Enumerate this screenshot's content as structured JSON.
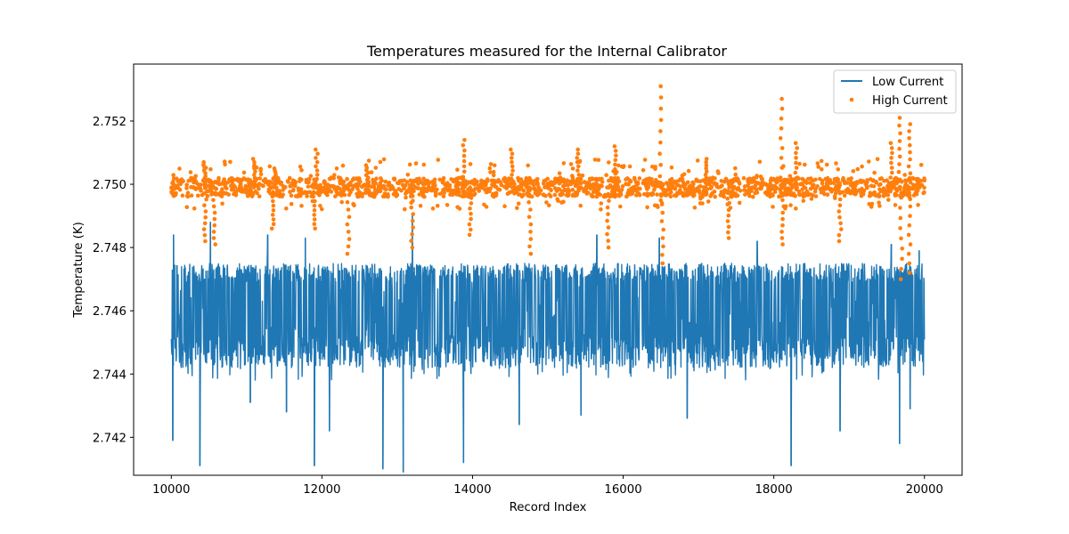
{
  "chart_data": {
    "type": "line",
    "title": "Temperatures measured for the Internal Calibrator",
    "xlabel": "Record Index",
    "ylabel": "Temperature (K)",
    "xlim": [
      9500,
      20500
    ],
    "ylim": [
      2.7408,
      2.7538
    ],
    "xticks": [
      10000,
      12000,
      14000,
      16000,
      18000,
      20000
    ],
    "yticks": [
      2.742,
      2.744,
      2.746,
      2.748,
      2.75,
      2.752
    ],
    "ytick_labels": [
      "2.742",
      "2.744",
      "2.746",
      "2.748",
      "2.750",
      "2.752"
    ],
    "grid": false,
    "legend_position": "top-right",
    "series": [
      {
        "name": "Low Current",
        "kind": "line",
        "color": "#1f77b4",
        "x_range": [
          10000,
          20000
        ],
        "mean": 2.7458,
        "band": [
          2.7438,
          2.7475
        ],
        "low_dips": [
          {
            "x": 10020,
            "y": 2.7419
          },
          {
            "x": 10380,
            "y": 2.7411
          },
          {
            "x": 11050,
            "y": 2.7431
          },
          {
            "x": 11530,
            "y": 2.7428
          },
          {
            "x": 11900,
            "y": 2.7411
          },
          {
            "x": 12100,
            "y": 2.7422
          },
          {
            "x": 12810,
            "y": 2.741
          },
          {
            "x": 13080,
            "y": 2.7409
          },
          {
            "x": 13880,
            "y": 2.7412
          },
          {
            "x": 14620,
            "y": 2.7424
          },
          {
            "x": 15440,
            "y": 2.7427
          },
          {
            "x": 16850,
            "y": 2.7426
          },
          {
            "x": 18230,
            "y": 2.7411
          },
          {
            "x": 18880,
            "y": 2.7422
          },
          {
            "x": 19670,
            "y": 2.7418
          },
          {
            "x": 19810,
            "y": 2.7429
          }
        ],
        "high_spikes": [
          {
            "x": 10030,
            "y": 2.7484
          },
          {
            "x": 10520,
            "y": 2.7488
          },
          {
            "x": 11280,
            "y": 2.7484
          },
          {
            "x": 11780,
            "y": 2.7483
          },
          {
            "x": 13200,
            "y": 2.749
          },
          {
            "x": 15650,
            "y": 2.7484
          },
          {
            "x": 16480,
            "y": 2.7483
          },
          {
            "x": 17780,
            "y": 2.7482
          },
          {
            "x": 19560,
            "y": 2.7481
          },
          {
            "x": 19930,
            "y": 2.7479
          }
        ]
      },
      {
        "name": "High Current",
        "kind": "scatter",
        "color": "#ff7f0e",
        "x_range": [
          10000,
          20000
        ],
        "mean": 2.7499,
        "band": [
          2.7496,
          2.7502
        ],
        "spikes_up": [
          {
            "x": 10440,
            "y": 2.7507
          },
          {
            "x": 11100,
            "y": 2.7508
          },
          {
            "x": 11380,
            "y": 2.7505
          },
          {
            "x": 11930,
            "y": 2.7511
          },
          {
            "x": 12600,
            "y": 2.7506
          },
          {
            "x": 13880,
            "y": 2.7514
          },
          {
            "x": 14520,
            "y": 2.7511
          },
          {
            "x": 15400,
            "y": 2.7511
          },
          {
            "x": 15900,
            "y": 2.7512
          },
          {
            "x": 16500,
            "y": 2.7531
          },
          {
            "x": 17100,
            "y": 2.7508
          },
          {
            "x": 18100,
            "y": 2.7527
          },
          {
            "x": 18300,
            "y": 2.7513
          },
          {
            "x": 19560,
            "y": 2.7513
          },
          {
            "x": 19670,
            "y": 2.7521
          },
          {
            "x": 19800,
            "y": 2.7519
          }
        ],
        "spikes_down": [
          {
            "x": 10450,
            "y": 2.7482
          },
          {
            "x": 10570,
            "y": 2.7481
          },
          {
            "x": 11350,
            "y": 2.7486
          },
          {
            "x": 11900,
            "y": 2.7486
          },
          {
            "x": 12350,
            "y": 2.7478
          },
          {
            "x": 13200,
            "y": 2.748
          },
          {
            "x": 13970,
            "y": 2.7484
          },
          {
            "x": 14760,
            "y": 2.7478
          },
          {
            "x": 15800,
            "y": 2.748
          },
          {
            "x": 16520,
            "y": 2.7475
          },
          {
            "x": 17400,
            "y": 2.7483
          },
          {
            "x": 18120,
            "y": 2.7481
          },
          {
            "x": 18880,
            "y": 2.7482
          },
          {
            "x": 19690,
            "y": 2.747
          },
          {
            "x": 19800,
            "y": 2.7472
          }
        ]
      }
    ]
  }
}
